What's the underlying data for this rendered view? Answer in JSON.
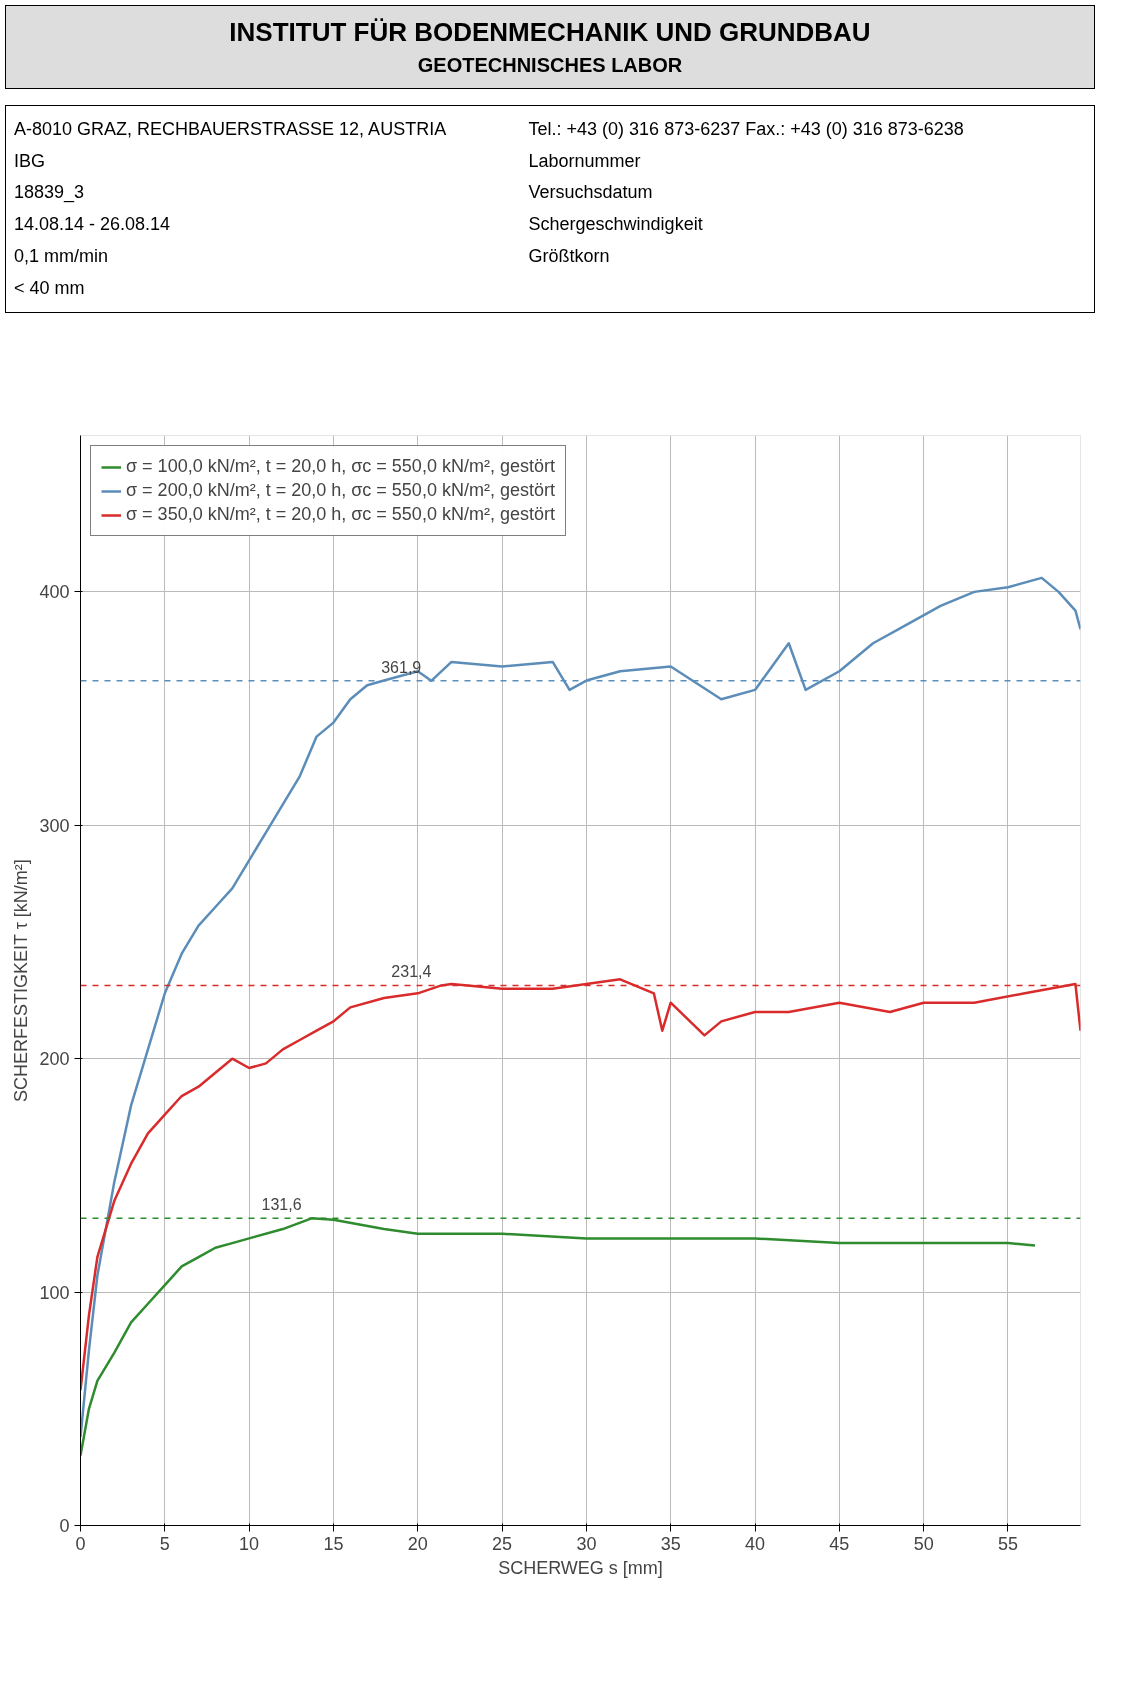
{
  "chart_data": {
    "type": "line",
    "title": "INSTITUT FÜR BODENMECHANIK UND GRUNDBAU",
    "subtitle": "GEOTECHNISCHES LABOR",
    "xlabel": "SCHERWEG s [mm]",
    "ylabel": "SCHERFESTIGKEIT τ [kN/m²]",
    "xlim": [
      0,
      59.3
    ],
    "ylim": [
      0,
      467
    ],
    "xticks": [
      0,
      5,
      10,
      15,
      20,
      25,
      30,
      35,
      40,
      45,
      50,
      55
    ],
    "yticks": [
      0,
      100,
      200,
      300,
      400
    ],
    "grid": true,
    "legend": "top",
    "line_style": "solid",
    "marker": "none",
    "series": [
      {
        "name": "σ = 100,0 kN/m², t = 20,0 h, σc = 550,0 kN/m², gestört",
        "color": "#2e8b2e",
        "x": [
          0,
          0.5,
          1,
          2,
          3,
          4,
          5,
          6,
          7,
          8,
          9,
          10,
          12,
          13.7,
          15,
          18,
          20,
          25,
          30,
          35,
          40,
          45,
          50,
          55,
          56.6
        ],
        "values": [
          30,
          50,
          62,
          74,
          87,
          95,
          103,
          111,
          115,
          119,
          121,
          123,
          127,
          131.6,
          131,
          127,
          125,
          125,
          123,
          123,
          123,
          121,
          121,
          121,
          120
        ]
      },
      {
        "name": "σ = 200,0 kN/m², t = 20,0 h, σc = 550,0 kN/m², gestört",
        "color": "#5b8db8",
        "x": [
          0,
          0.5,
          1,
          2,
          3,
          4,
          4.5,
          5,
          6,
          7,
          8,
          9,
          10,
          11,
          12,
          13,
          14,
          15,
          16,
          17,
          18,
          20,
          20.8,
          22,
          25,
          28,
          29,
          30,
          32,
          35,
          38,
          40,
          42,
          43,
          45,
          47,
          49,
          51,
          53,
          55,
          57,
          58,
          59,
          59.3
        ],
        "values": [
          38,
          75,
          107,
          147,
          180,
          204,
          216,
          228,
          245,
          257,
          265,
          273,
          285,
          297,
          309,
          321,
          338,
          344,
          354,
          360,
          362,
          366,
          361.9,
          370,
          368,
          370,
          358,
          362,
          366,
          368,
          354,
          358,
          378,
          358,
          366,
          378,
          386,
          394,
          400,
          402,
          406,
          400,
          392,
          384
        ]
      },
      {
        "name": "σ = 350,0 kN/m², t = 20,0 h, σc = 550,0 kN/m², gestört",
        "color": "#d92b2b",
        "x": [
          0,
          0.5,
          1,
          2,
          3,
          4,
          5,
          6,
          7,
          8,
          9,
          10,
          11,
          12,
          13,
          14,
          15,
          16,
          18,
          20,
          21.4,
          22,
          25,
          28,
          30,
          32,
          34,
          34.5,
          35,
          37,
          38,
          40,
          42,
          45,
          48,
          50,
          53,
          56,
          59,
          59.3
        ],
        "values": [
          58,
          90,
          115,
          139,
          155,
          168,
          176,
          184,
          188,
          194,
          200,
          196,
          198,
          204,
          208,
          212,
          216,
          222,
          226,
          228,
          231.4,
          232,
          230,
          230,
          232,
          234,
          228,
          212,
          224,
          210,
          216,
          220,
          220,
          224,
          220,
          224,
          224,
          228,
          232,
          212
        ]
      }
    ],
    "ref_lines": [
      {
        "axis": "y",
        "value": 361.9,
        "color": "#5b8db8",
        "line_style": "dashed"
      },
      {
        "axis": "y",
        "value": 231.4,
        "color": "#d92b2b",
        "line_style": "dashed"
      },
      {
        "axis": "y",
        "value": 131.6,
        "color": "#2e8b2e",
        "line_style": "dashed"
      }
    ],
    "annotations": [
      "A-8010 GRAZ, RECHBAUERSTRASSE 12, AUSTRIA",
      "Tel.: +43 (0) 316 873-6237   Fax.: +43 (0) 316 873-6238",
      "IBG",
      "Labornummer",
      "18839_3",
      "Versuchsdatum",
      "14.08.14 - 26.08.14",
      "Schergeschwindigkeit",
      "0,1 mm/min",
      "Größtkorn",
      "< 40 mm",
      {
        "text": "361,9",
        "x": 20.8,
        "y": 361.9
      },
      {
        "text": "231,4",
        "x": 21.4,
        "y": 231.4
      },
      {
        "text": "131,6",
        "x": 13.7,
        "y": 131.6
      }
    ]
  }
}
